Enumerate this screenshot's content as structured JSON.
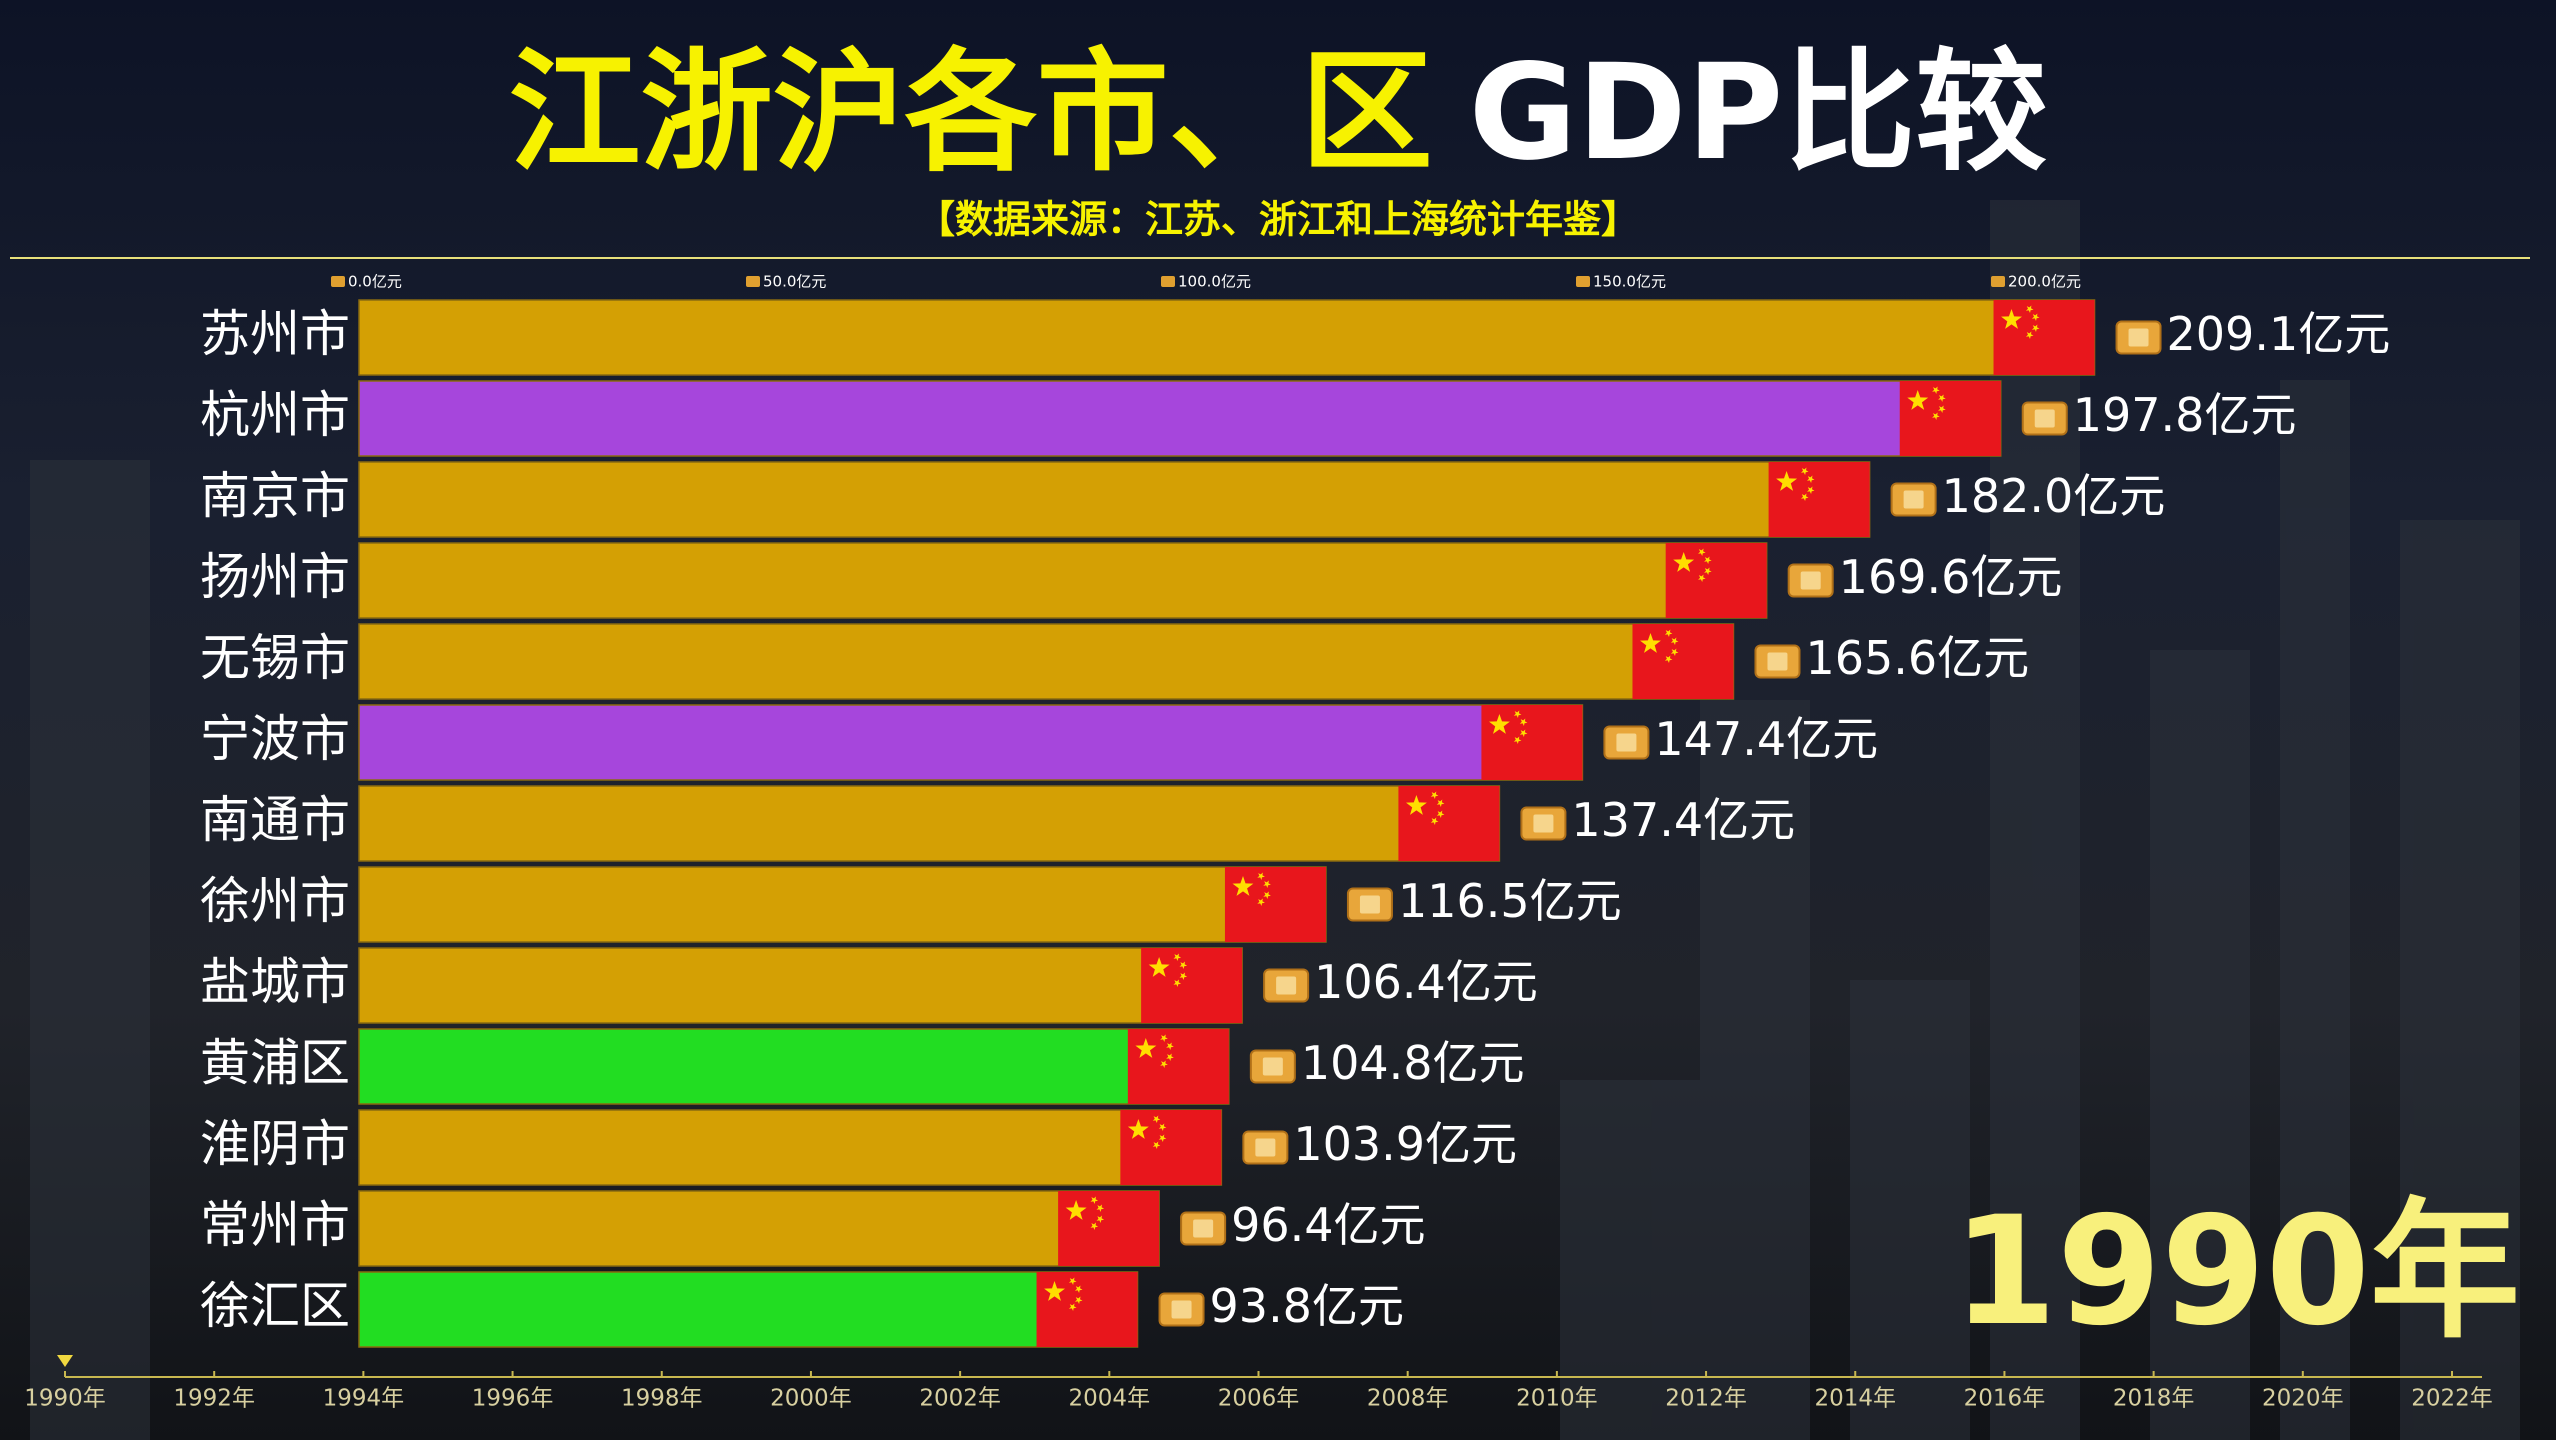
{
  "chart_data": {
    "type": "hbar",
    "title": [
      {
        "text": "江浙沪各市、区",
        "color": "#f7f200"
      },
      {
        "text": "GDP比较",
        "color": "#ffffff"
      }
    ],
    "subtitle": "【数据来源：江苏、浙江和上海统计年鉴】",
    "categories": [
      "苏州市",
      "杭州市",
      "南京市",
      "扬州市",
      "无锡市",
      "宁波市",
      "南通市",
      "徐州市",
      "盐城市",
      "黄浦区",
      "淮阴市",
      "常州市",
      "徐汇区"
    ],
    "values": [
      209.1,
      197.8,
      182.0,
      169.6,
      165.6,
      147.4,
      137.4,
      116.5,
      106.4,
      104.8,
      103.9,
      96.4,
      93.8
    ],
    "value_labels": [
      "209.1亿元",
      "197.8亿元",
      "182.0亿元",
      "169.6亿元",
      "165.6亿元",
      "147.4亿元",
      "137.4亿元",
      "116.5亿元",
      "106.4亿元",
      "104.8亿元",
      "103.9亿元",
      "96.4亿元",
      "93.8亿元"
    ],
    "colors": [
      "#d4a004",
      "#a646dc",
      "#d4a004",
      "#d4a004",
      "#d4a004",
      "#a646dc",
      "#d4a004",
      "#d4a004",
      "#d4a004",
      "#22dd22",
      "#d4a004",
      "#d4a004",
      "#22dd22"
    ],
    "xlim": [
      0,
      260
    ],
    "xticks": [
      {
        "value": 0,
        "label": "0.0亿元"
      },
      {
        "value": 50,
        "label": "50.0亿元"
      },
      {
        "value": 100,
        "label": "100.0亿元"
      },
      {
        "value": 150,
        "label": "150.0亿元"
      },
      {
        "value": 200,
        "label": "200.0亿元"
      }
    ],
    "year_label": "1990年",
    "timeline_lim": [
      1990,
      2022
    ],
    "timeline_ticks": [
      {
        "value": 1990,
        "label": "1990年"
      },
      {
        "value": 1992,
        "label": "1992年"
      },
      {
        "value": 1994,
        "label": "1994年"
      },
      {
        "value": 1996,
        "label": "1996年"
      },
      {
        "value": 1998,
        "label": "1998年"
      },
      {
        "value": 2000,
        "label": "2000年"
      },
      {
        "value": 2002,
        "label": "2002年"
      },
      {
        "value": 2004,
        "label": "2004年"
      },
      {
        "value": 2006,
        "label": "2006年"
      },
      {
        "value": 2008,
        "label": "2008年"
      },
      {
        "value": 2010,
        "label": "2010年"
      },
      {
        "value": 2012,
        "label": "2012年"
      },
      {
        "value": 2014,
        "label": "2014年"
      },
      {
        "value": 2016,
        "label": "2016年"
      },
      {
        "value": 2018,
        "label": "2018年"
      },
      {
        "value": 2020,
        "label": "2020年"
      },
      {
        "value": 2022,
        "label": "2022年"
      }
    ]
  }
}
